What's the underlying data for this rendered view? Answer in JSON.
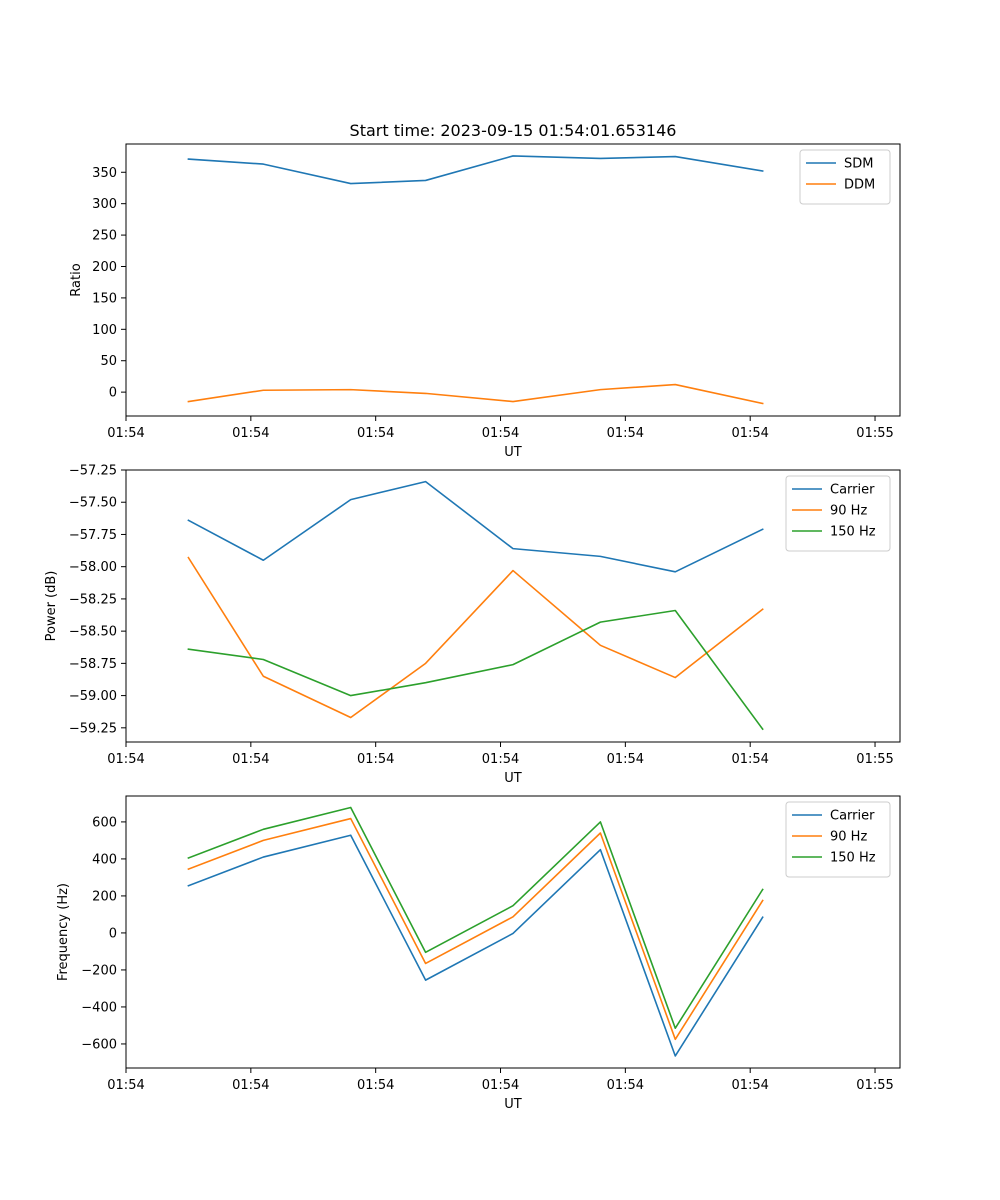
{
  "chart_data": [
    {
      "type": "line",
      "title": "Start time: 2023-09-15 01:54:01.653146",
      "xlabel": "UT",
      "ylabel": "Ratio",
      "xlim": [
        0,
        6.2
      ],
      "x": [
        0.5,
        1.1,
        1.8,
        2.4,
        3.1,
        3.8,
        4.4,
        5.1
      ],
      "xticks": [
        0,
        1,
        2,
        3,
        4,
        5,
        6
      ],
      "xtick_labels": [
        "01:54",
        "01:54",
        "01:54",
        "01:54",
        "01:54",
        "01:54",
        "01:55"
      ],
      "ylim": [
        -38,
        395
      ],
      "yticks": [
        0,
        50,
        100,
        150,
        200,
        250,
        300,
        350
      ],
      "legend_position": "top-right",
      "series": [
        {
          "name": "SDM",
          "color": "#1f77b4",
          "values": [
            371,
            363,
            332,
            337,
            376,
            372,
            375,
            352
          ]
        },
        {
          "name": "DDM",
          "color": "#ff7f0e",
          "values": [
            -15,
            3,
            4,
            -2,
            -15,
            4,
            12,
            -18
          ]
        }
      ]
    },
    {
      "type": "line",
      "title": "",
      "xlabel": "UT",
      "ylabel": "Power (dB)",
      "xlim": [
        0,
        6.2
      ],
      "x": [
        0.5,
        1.1,
        1.8,
        2.4,
        3.1,
        3.8,
        4.4,
        5.1
      ],
      "xticks": [
        0,
        1,
        2,
        3,
        4,
        5,
        6
      ],
      "xtick_labels": [
        "01:54",
        "01:54",
        "01:54",
        "01:54",
        "01:54",
        "01:54",
        "01:55"
      ],
      "ylim": [
        -59.36,
        -57.25
      ],
      "yticks": [
        -59.25,
        -59.0,
        -58.75,
        -58.5,
        -58.25,
        -58.0,
        -57.75,
        -57.5,
        -57.25
      ],
      "ytick_labels": [
        "−59.25",
        "−59.00",
        "−58.75",
        "−58.50",
        "−58.25",
        "−58.00",
        "−57.75",
        "−57.50",
        "−57.25"
      ],
      "legend_position": "top-right",
      "series": [
        {
          "name": "Carrier",
          "color": "#1f77b4",
          "values": [
            -57.64,
            -57.95,
            -57.48,
            -57.34,
            -57.86,
            -57.92,
            -58.04,
            -57.71
          ]
        },
        {
          "name": "90 Hz",
          "color": "#ff7f0e",
          "values": [
            -57.93,
            -58.85,
            -59.17,
            -58.75,
            -58.03,
            -58.61,
            -58.86,
            -58.33
          ]
        },
        {
          "name": "150 Hz",
          "color": "#2ca02c",
          "values": [
            -58.64,
            -58.72,
            -59.0,
            -58.9,
            -58.76,
            -58.43,
            -58.34,
            -59.26
          ]
        }
      ]
    },
    {
      "type": "line",
      "title": "",
      "xlabel": "UT",
      "ylabel": "Frequency (Hz)",
      "xlim": [
        0,
        6.2
      ],
      "x": [
        0.5,
        1.1,
        1.8,
        2.4,
        3.1,
        3.8,
        4.4,
        5.1
      ],
      "xticks": [
        0,
        1,
        2,
        3,
        4,
        5,
        6
      ],
      "xtick_labels": [
        "01:54",
        "01:54",
        "01:54",
        "01:54",
        "01:54",
        "01:54",
        "01:55"
      ],
      "ylim": [
        -730,
        740
      ],
      "yticks": [
        -600,
        -400,
        -200,
        0,
        200,
        400,
        600
      ],
      "ytick_labels": [
        "−600",
        "−400",
        "−200",
        "0",
        "200",
        "400",
        "600"
      ],
      "legend_position": "top-right",
      "series": [
        {
          "name": "Carrier",
          "color": "#1f77b4",
          "values": [
            255,
            410,
            528,
            -255,
            -3,
            450,
            -665,
            85
          ]
        },
        {
          "name": "90 Hz",
          "color": "#ff7f0e",
          "values": [
            345,
            500,
            618,
            -165,
            87,
            540,
            -575,
            175
          ]
        },
        {
          "name": "150 Hz",
          "color": "#2ca02c",
          "values": [
            405,
            560,
            678,
            -105,
            147,
            600,
            -515,
            235
          ]
        }
      ]
    }
  ]
}
